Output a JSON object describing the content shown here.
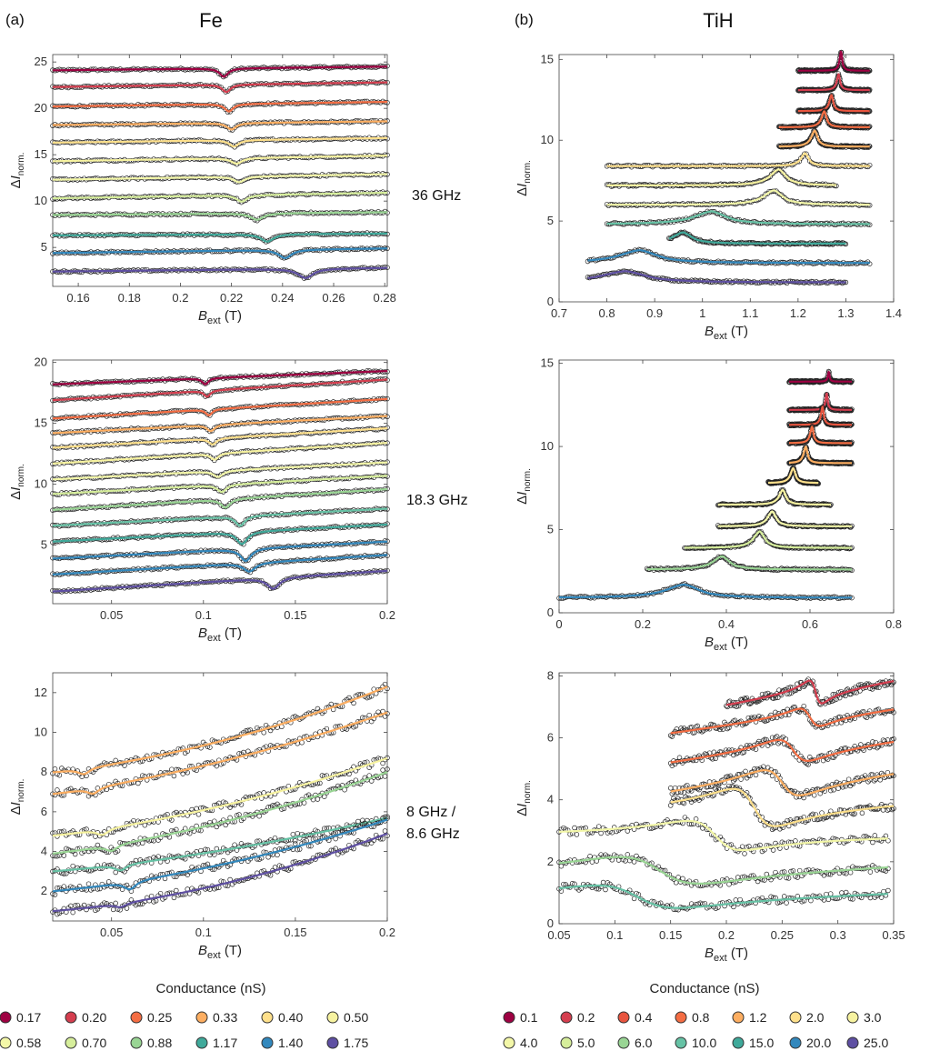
{
  "figure": {
    "panel_a_tag": "(a)",
    "panel_b_tag": "(b)",
    "column_a_title": "Fe",
    "column_b_title": "TiH"
  },
  "frequencies": [
    "36 GHz",
    "18.3 GHz",
    "8 GHz /",
    "8.6 GHz"
  ],
  "legend_a": {
    "title": "Conductance (nS)",
    "items": [
      {
        "label": "0.17",
        "color": "#9e0142"
      },
      {
        "label": "0.20",
        "color": "#d53e4f"
      },
      {
        "label": "0.25",
        "color": "#f46d43"
      },
      {
        "label": "0.33",
        "color": "#fdae61"
      },
      {
        "label": "0.40",
        "color": "#fee08b"
      },
      {
        "label": "0.50",
        "color": "#f7f3a0"
      },
      {
        "label": "0.58",
        "color": "#f3f7a8"
      },
      {
        "label": "0.70",
        "color": "#d6ee9b"
      },
      {
        "label": "0.88",
        "color": "#99d594"
      },
      {
        "label": "1.17",
        "color": "#3fa99a"
      },
      {
        "label": "1.40",
        "color": "#3288bd"
      },
      {
        "label": "1.75",
        "color": "#5e4fa2"
      }
    ]
  },
  "legend_b": {
    "title": "Conductance (nS)",
    "items": [
      {
        "label": "0.1",
        "color": "#9e0142"
      },
      {
        "label": "0.2",
        "color": "#d53e4f"
      },
      {
        "label": "0.4",
        "color": "#e8553f"
      },
      {
        "label": "0.8",
        "color": "#f46d43"
      },
      {
        "label": "1.2",
        "color": "#fdae61"
      },
      {
        "label": "2.0",
        "color": "#fee08b"
      },
      {
        "label": "3.0",
        "color": "#f7f3a0"
      },
      {
        "label": "4.0",
        "color": "#f3f7a8"
      },
      {
        "label": "5.0",
        "color": "#d6ee9b"
      },
      {
        "label": "6.0",
        "color": "#99d594"
      },
      {
        "label": "10.0",
        "color": "#66c2a5"
      },
      {
        "label": "15.0",
        "color": "#3fa99a"
      },
      {
        "label": "20.0",
        "color": "#3288bd"
      },
      {
        "label": "25.0",
        "color": "#5e4fa2"
      }
    ]
  },
  "chart_data": [
    {
      "id": "a1",
      "type": "line",
      "panel": "(a) Fe, 36 GHz",
      "xlabel": "B_ext (T)",
      "ylabel": "ΔI_norm.",
      "xlim": [
        0.15,
        0.281
      ],
      "ylim": [
        0.8,
        25.8
      ],
      "xticks": [
        "0.16",
        "0.18",
        "0.2",
        "0.22",
        "0.24",
        "0.26",
        "0.28"
      ],
      "xtick_values": [
        0.16,
        0.18,
        0.2,
        0.22,
        0.24,
        0.26,
        0.28
      ],
      "yticks": [
        "5",
        "10",
        "15",
        "20",
        "25"
      ],
      "ytick_values": [
        5,
        10,
        15,
        20,
        25
      ],
      "x_range": [
        0.15,
        0.281
      ],
      "series": [
        {
          "color": "#9e0142",
          "start": 24.1,
          "end": 24.5,
          "dip_center": 0.217,
          "dip_depth": 0.9,
          "dip_width": 0.002
        },
        {
          "color": "#d53e4f",
          "start": 22.3,
          "end": 22.8,
          "dip_center": 0.218,
          "dip_depth": 0.8,
          "dip_width": 0.002
        },
        {
          "color": "#f46d43",
          "start": 20.2,
          "end": 20.7,
          "dip_center": 0.219,
          "dip_depth": 0.8,
          "dip_width": 0.002
        },
        {
          "color": "#fdae61",
          "start": 18.2,
          "end": 18.6,
          "dip_center": 0.22,
          "dip_depth": 0.7,
          "dip_width": 0.0022
        },
        {
          "color": "#fee08b",
          "start": 16.3,
          "end": 16.8,
          "dip_center": 0.221,
          "dip_depth": 0.7,
          "dip_width": 0.0022
        },
        {
          "color": "#f7f3a0",
          "start": 14.3,
          "end": 14.9,
          "dip_center": 0.222,
          "dip_depth": 0.6,
          "dip_width": 0.0025
        },
        {
          "color": "#f3f7a8",
          "start": 12.3,
          "end": 12.9,
          "dip_center": 0.223,
          "dip_depth": 0.6,
          "dip_width": 0.0025
        },
        {
          "color": "#d6ee9b",
          "start": 10.3,
          "end": 10.9,
          "dip_center": 0.224,
          "dip_depth": 0.7,
          "dip_width": 0.0025
        },
        {
          "color": "#99d594",
          "start": 8.5,
          "end": 8.8,
          "dip_center": 0.23,
          "dip_depth": 0.7,
          "dip_width": 0.003
        },
        {
          "color": "#3fa99a",
          "start": 6.3,
          "end": 6.5,
          "dip_center": 0.234,
          "dip_depth": 0.8,
          "dip_width": 0.003
        },
        {
          "color": "#3288bd",
          "start": 4.4,
          "end": 4.9,
          "dip_center": 0.241,
          "dip_depth": 0.9,
          "dip_width": 0.003
        },
        {
          "color": "#5e4fa2",
          "start": 2.4,
          "end": 2.8,
          "dip_center": 0.249,
          "dip_depth": 1.0,
          "dip_width": 0.0035
        }
      ]
    },
    {
      "id": "b1",
      "type": "line",
      "panel": "(b) TiH, 36 GHz",
      "xlabel": "B_ext (T)",
      "ylabel": "ΔI_norm.",
      "xlim": [
        0.7,
        1.4
      ],
      "ylim": [
        0,
        15.3
      ],
      "xticks": [
        "0.7",
        "0.8",
        "0.9",
        "1",
        "1.1",
        "1.2",
        "1.3",
        "1.4"
      ],
      "xtick_values": [
        0.7,
        0.8,
        0.9,
        1.0,
        1.1,
        1.2,
        1.3,
        1.4
      ],
      "yticks": [
        "0",
        "5",
        "10",
        "15"
      ],
      "ytick_values": [
        0,
        5,
        10,
        15
      ],
      "series": [
        {
          "color": "#9e0142",
          "x0": 1.2,
          "x1": 1.35,
          "base": 14.3,
          "peak_center": 1.29,
          "peak_height": 1.2,
          "peak_width": 0.004
        },
        {
          "color": "#d53e4f",
          "x0": 1.2,
          "x1": 1.35,
          "base": 13.1,
          "peak_center": 1.285,
          "peak_height": 1.0,
          "peak_width": 0.005
        },
        {
          "color": "#e8553f",
          "x0": 1.2,
          "x1": 1.35,
          "base": 11.8,
          "peak_center": 1.27,
          "peak_height": 1.0,
          "peak_width": 0.006
        },
        {
          "color": "#f46d43",
          "x0": 1.16,
          "x1": 1.35,
          "base": 10.8,
          "peak_center": 1.255,
          "peak_height": 1.0,
          "peak_width": 0.008
        },
        {
          "color": "#fdae61",
          "x0": 1.16,
          "x1": 1.35,
          "base": 9.6,
          "peak_center": 1.235,
          "peak_height": 1.0,
          "peak_width": 0.01
        },
        {
          "color": "#fee08b",
          "x0": 0.8,
          "x1": 1.35,
          "base": 8.4,
          "peak_center": 1.215,
          "peak_height": 0.8,
          "peak_width": 0.012
        },
        {
          "color": "#f7f3a0",
          "x0": 0.8,
          "x1": 1.28,
          "base": 7.2,
          "peak_center": 1.16,
          "peak_height": 1.0,
          "peak_width": 0.025
        },
        {
          "color": "#f3f7a8",
          "x0": 0.8,
          "x1": 1.35,
          "base": 6.0,
          "peak_center": 1.15,
          "peak_height": 0.9,
          "peak_width": 0.03
        },
        {
          "color": "#66c2a5",
          "x0": 0.8,
          "x1": 1.35,
          "base": 4.8,
          "peak_center": 1.02,
          "peak_height": 0.8,
          "peak_width": 0.05
        },
        {
          "color": "#3fa99a",
          "x0": 0.93,
          "x1": 1.3,
          "base": 3.6,
          "peak_center": 0.96,
          "peak_height": 0.7,
          "peak_width": 0.03
        },
        {
          "color": "#3288bd",
          "x0": 0.76,
          "x1": 1.35,
          "base": 2.4,
          "peak_center": 0.87,
          "peak_height": 0.8,
          "peak_width": 0.06
        },
        {
          "color": "#5e4fa2",
          "x0": 0.76,
          "x1": 1.3,
          "base": 1.2,
          "peak_center": 0.84,
          "peak_height": 0.7,
          "peak_width": 0.07
        }
      ]
    },
    {
      "id": "a2",
      "type": "line",
      "panel": "(a) Fe, 18.3 GHz",
      "xlabel": "B_ext (T)",
      "ylabel": "ΔI_norm.",
      "xlim": [
        0.018,
        0.2
      ],
      "ylim": [
        0.2,
        20.2
      ],
      "xticks": [
        "0.05",
        "0.1",
        "0.15",
        "0.2"
      ],
      "xtick_values": [
        0.05,
        0.1,
        0.15,
        0.2
      ],
      "yticks": [
        "5",
        "10",
        "15",
        "20"
      ],
      "ytick_values": [
        5,
        10,
        15,
        20
      ],
      "series": [
        {
          "color": "#9e0142",
          "start": 18.2,
          "end": 19.3,
          "dip_center": 0.101,
          "dip_depth": 0.5,
          "dip_width": 0.002
        },
        {
          "color": "#d53e4f",
          "start": 16.9,
          "end": 18.6,
          "dip_center": 0.102,
          "dip_depth": 0.5,
          "dip_width": 0.002
        },
        {
          "color": "#f46d43",
          "start": 15.4,
          "end": 17.0,
          "dip_center": 0.103,
          "dip_depth": 0.5,
          "dip_width": 0.002
        },
        {
          "color": "#fdae61",
          "start": 14.2,
          "end": 15.6,
          "dip_center": 0.104,
          "dip_depth": 0.5,
          "dip_width": 0.0025
        },
        {
          "color": "#fee08b",
          "start": 13.0,
          "end": 14.6,
          "dip_center": 0.105,
          "dip_depth": 0.5,
          "dip_width": 0.0025
        },
        {
          "color": "#f7f3a0",
          "start": 11.7,
          "end": 13.4,
          "dip_center": 0.106,
          "dip_depth": 0.5,
          "dip_width": 0.0025
        },
        {
          "color": "#f3f7a8",
          "start": 10.4,
          "end": 11.8,
          "dip_center": 0.108,
          "dip_depth": 0.5,
          "dip_width": 0.003
        },
        {
          "color": "#d6ee9b",
          "start": 9.2,
          "end": 10.7,
          "dip_center": 0.11,
          "dip_depth": 0.6,
          "dip_width": 0.003
        },
        {
          "color": "#99d594",
          "start": 7.9,
          "end": 9.6,
          "dip_center": 0.112,
          "dip_depth": 0.7,
          "dip_width": 0.003
        },
        {
          "color": "#66c2a5",
          "start": 6.6,
          "end": 8.0,
          "dip_center": 0.12,
          "dip_depth": 0.8,
          "dip_width": 0.003
        },
        {
          "color": "#3fa99a",
          "start": 5.3,
          "end": 6.7,
          "dip_center": 0.121,
          "dip_depth": 1.0,
          "dip_width": 0.0035
        },
        {
          "color": "#3288bd",
          "start": 3.9,
          "end": 5.3,
          "dip_center": 0.123,
          "dip_depth": 1.0,
          "dip_width": 0.0035
        },
        {
          "color": "#3288bd",
          "start": 2.6,
          "end": 4.2,
          "dip_center": 0.125,
          "dip_depth": 0.7,
          "dip_width": 0.004
        },
        {
          "color": "#5e4fa2",
          "start": 1.2,
          "end": 2.9,
          "dip_center": 0.138,
          "dip_depth": 0.9,
          "dip_width": 0.004
        }
      ]
    },
    {
      "id": "b2",
      "type": "line",
      "panel": "(b) TiH, 18.3 GHz",
      "xlabel": "B_ext (T)",
      "ylabel": "ΔI_norm.",
      "xlim": [
        0,
        0.8
      ],
      "ylim": [
        0,
        15.2
      ],
      "xticks": [
        "0",
        "0.2",
        "0.4",
        "0.6",
        "0.8"
      ],
      "xtick_values": [
        0,
        0.2,
        0.4,
        0.6,
        0.8
      ],
      "yticks": [
        "0",
        "5",
        "10",
        "15"
      ],
      "ytick_values": [
        0,
        5,
        10,
        15
      ],
      "series": [
        {
          "color": "#9e0142",
          "x0": 0.55,
          "x1": 0.7,
          "base": 13.9,
          "peak_center": 0.645,
          "peak_height": 0.6,
          "peak_width": 0.003
        },
        {
          "color": "#d53e4f",
          "x0": 0.55,
          "x1": 0.7,
          "base": 12.2,
          "peak_center": 0.64,
          "peak_height": 1.0,
          "peak_width": 0.004
        },
        {
          "color": "#e8553f",
          "x0": 0.55,
          "x1": 0.7,
          "base": 11.3,
          "peak_center": 0.63,
          "peak_height": 1.1,
          "peak_width": 0.005
        },
        {
          "color": "#f46d43",
          "x0": 0.55,
          "x1": 0.7,
          "base": 10.2,
          "peak_center": 0.605,
          "peak_height": 1.0,
          "peak_width": 0.006
        },
        {
          "color": "#fdae61",
          "x0": 0.55,
          "x1": 0.7,
          "base": 9.0,
          "peak_center": 0.59,
          "peak_height": 1.0,
          "peak_width": 0.007
        },
        {
          "color": "#fee08b",
          "x0": 0.5,
          "x1": 0.62,
          "base": 7.8,
          "peak_center": 0.56,
          "peak_height": 0.9,
          "peak_width": 0.009
        },
        {
          "color": "#f7f3a0",
          "x0": 0.38,
          "x1": 0.65,
          "base": 6.5,
          "peak_center": 0.535,
          "peak_height": 0.9,
          "peak_width": 0.012
        },
        {
          "color": "#f3f7a8",
          "x0": 0.38,
          "x1": 0.7,
          "base": 5.2,
          "peak_center": 0.51,
          "peak_height": 0.9,
          "peak_width": 0.015
        },
        {
          "color": "#d6ee9b",
          "x0": 0.3,
          "x1": 0.7,
          "base": 3.9,
          "peak_center": 0.48,
          "peak_height": 1.0,
          "peak_width": 0.02
        },
        {
          "color": "#99d594",
          "x0": 0.21,
          "x1": 0.7,
          "base": 2.6,
          "peak_center": 0.39,
          "peak_height": 0.8,
          "peak_width": 0.03
        },
        {
          "color": "#3288bd",
          "x0": 0.0,
          "x1": 0.7,
          "base": 0.9,
          "peak_center": 0.3,
          "peak_height": 0.8,
          "peak_width": 0.06
        }
      ]
    },
    {
      "id": "a3",
      "type": "scatter",
      "panel": "(a) Fe, 8 GHz / 8.6 GHz",
      "xlabel": "B_ext (T)",
      "ylabel": "ΔI_norm.",
      "xlim": [
        0.018,
        0.2
      ],
      "ylim": [
        0.5,
        13
      ],
      "xticks": [
        "0.05",
        "0.1",
        "0.15",
        "0.2"
      ],
      "xtick_values": [
        0.05,
        0.1,
        0.15,
        0.2
      ],
      "yticks": [
        "2",
        "4",
        "6",
        "8",
        "10",
        "12"
      ],
      "ytick_values": [
        2,
        4,
        6,
        8,
        10,
        12
      ],
      "series": [
        {
          "color": "#fdae61",
          "start": 8.0,
          "end": 12.3,
          "curv": 1.6,
          "dip_center": 0.035,
          "dip_depth": 0.3
        },
        {
          "color": "#fdae61",
          "start": 6.9,
          "end": 11.0,
          "curv": 1.2,
          "dip_center": 0.04,
          "dip_depth": 0.3
        },
        {
          "color": "#f7f3a0",
          "start": 4.8,
          "end": 8.7,
          "curv": 1.4,
          "dip_center": 0.045,
          "dip_depth": 0.3
        },
        {
          "color": "#99d594",
          "start": 3.9,
          "end": 8.0,
          "curv": 1.4,
          "dip_center": 0.05,
          "dip_depth": 0.3
        },
        {
          "color": "#66c2a5",
          "start": 3.0,
          "end": 5.7,
          "curv": 1.3,
          "dip_center": 0.055,
          "dip_depth": 0.3
        },
        {
          "color": "#3288bd",
          "start": 2.0,
          "end": 5.6,
          "curv": 1.5,
          "dip_center": 0.06,
          "dip_depth": 0.4
        },
        {
          "color": "#5e4fa2",
          "start": 1.0,
          "end": 4.9,
          "curv": 1.8,
          "dip_center": 0.055,
          "dip_depth": 0.2
        }
      ]
    },
    {
      "id": "b3",
      "type": "scatter",
      "panel": "(b) TiH, 8 GHz / 8.6 GHz",
      "xlabel": "B_ext (T)",
      "ylabel": "ΔI_norm.",
      "xlim": [
        0.05,
        0.35
      ],
      "ylim": [
        0,
        8.1
      ],
      "xticks": [
        "0.05",
        "0.1",
        "0.15",
        "0.2",
        "0.25",
        "0.3",
        "0.35"
      ],
      "xtick_values": [
        0.05,
        0.1,
        0.15,
        0.2,
        0.25,
        0.3,
        0.35
      ],
      "yticks": [
        "0",
        "2",
        "4",
        "6",
        "8"
      ],
      "ytick_values": [
        0,
        2,
        4,
        6,
        8
      ],
      "series": [
        {
          "color": "#d53e4f",
          "x0": 0.2,
          "x1": 0.35,
          "start": 7.0,
          "end": 7.9,
          "bump_center": 0.28,
          "bump_height": 0.5,
          "bump_width": 0.006
        },
        {
          "color": "#f46d43",
          "x0": 0.15,
          "x1": 0.35,
          "start": 6.1,
          "end": 7.0,
          "bump_center": 0.275,
          "bump_height": 0.4,
          "bump_width": 0.01
        },
        {
          "color": "#f46d43",
          "x0": 0.15,
          "x1": 0.35,
          "start": 5.1,
          "end": 6.0,
          "bump_center": 0.26,
          "bump_height": 0.5,
          "bump_width": 0.015
        },
        {
          "color": "#fdae61",
          "x0": 0.15,
          "x1": 0.35,
          "start": 4.1,
          "end": 5.0,
          "bump_center": 0.25,
          "bump_height": 0.6,
          "bump_width": 0.018
        },
        {
          "color": "#fee08b",
          "x0": 0.15,
          "x1": 0.35,
          "start": 3.6,
          "end": 4.0,
          "bump_center": 0.225,
          "bump_height": 0.8,
          "bump_width": 0.02
        },
        {
          "color": "#f3f7a8",
          "x0": 0.05,
          "x1": 0.345,
          "start": 2.8,
          "end": 2.9,
          "bump_center": 0.19,
          "bump_height": 0.6,
          "bump_width": 0.025
        },
        {
          "color": "#99d594",
          "x0": 0.05,
          "x1": 0.345,
          "start": 1.6,
          "end": 2.0,
          "bump_center": 0.14,
          "bump_height": 0.6,
          "bump_width": 0.04
        },
        {
          "color": "#66c2a5",
          "x0": 0.05,
          "x1": 0.345,
          "start": 0.8,
          "end": 1.1,
          "bump_center": 0.12,
          "bump_height": 0.5,
          "bump_width": 0.04
        }
      ]
    }
  ]
}
